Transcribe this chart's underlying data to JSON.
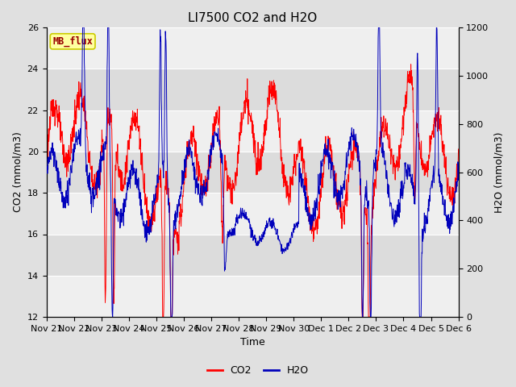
{
  "title": "LI7500 CO2 and H2O",
  "xlabel": "Time",
  "ylabel_left": "CO2 (mmol/m3)",
  "ylabel_right": "H2O (mmol/m3)",
  "co2_color": "#FF0000",
  "h2o_color": "#0000BB",
  "ylim_left": [
    12,
    26
  ],
  "ylim_right": [
    0,
    1200
  ],
  "yticks_left": [
    12,
    14,
    16,
    18,
    20,
    22,
    24,
    26
  ],
  "yticks_right": [
    0,
    200,
    400,
    600,
    800,
    1000,
    1200
  ],
  "xtick_labels": [
    "Nov 21",
    "Nov 22",
    "Nov 23",
    "Nov 24",
    "Nov 25",
    "Nov 26",
    "Nov 27",
    "Nov 28",
    "Nov 29",
    "Nov 30",
    "Dec 1",
    "Dec 2",
    "Dec 3",
    "Dec 4",
    "Dec 5",
    "Dec 6"
  ],
  "background_color": "#E0E0E0",
  "plot_bg_color": "#DCDCDC",
  "mb_flux_box_color": "#FFFFA0",
  "mb_flux_text_color": "#990000",
  "mb_flux_edge_color": "#CCCC00",
  "legend_co2_label": "CO2",
  "legend_h2o_label": "H2O",
  "title_fontsize": 11,
  "axis_label_fontsize": 9,
  "tick_fontsize": 8,
  "legend_fontsize": 9,
  "n_points": 1500,
  "figsize": [
    6.4,
    4.8
  ],
  "dpi": 100
}
